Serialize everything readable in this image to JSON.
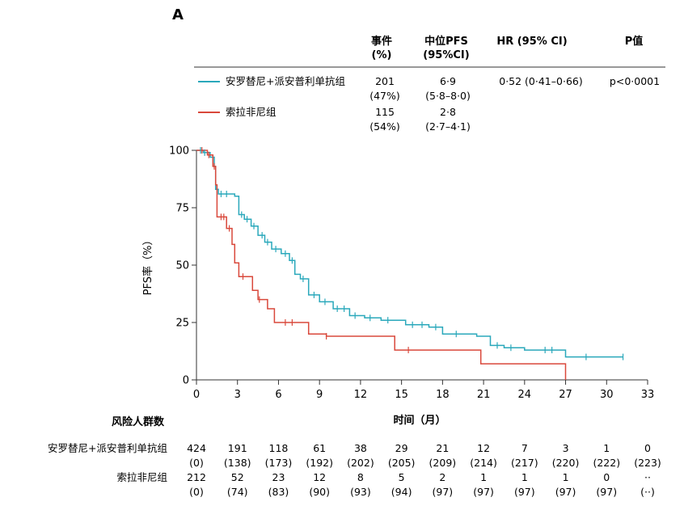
{
  "panel_label": "A",
  "table": {
    "headers": {
      "events": [
        "事件",
        "(%)"
      ],
      "median": [
        "中位PFS",
        "(95%CI)"
      ],
      "hr": "HR (95% CI)",
      "p": "P值"
    },
    "rows": [
      {
        "name": "安罗替尼+派安普利单抗组",
        "events": "201",
        "events_pct": "(47%)",
        "median": "6·9",
        "median_ci": "(5·8–8·0)",
        "hr": "0·52 (0·41–0·66)",
        "p": "p<0·0001",
        "color": "#2aa8bb"
      },
      {
        "name": "索拉非尼组",
        "events": "115",
        "events_pct": "(54%)",
        "median": "2·8",
        "median_ci": "(2·7–4·1)",
        "hr": "",
        "p": "",
        "color": "#d9483b"
      }
    ]
  },
  "chart_data": {
    "type": "line",
    "xlabel": "时间（月）",
    "ylabel": "PFS率（%）",
    "xlim": [
      0,
      33
    ],
    "ylim": [
      0,
      100
    ],
    "xticks": [
      "0",
      "3",
      "6",
      "9",
      "12",
      "15",
      "18",
      "21",
      "24",
      "27",
      "30",
      "33"
    ],
    "yticks": [
      "0",
      "25",
      "50",
      "75",
      "100"
    ],
    "grid": false,
    "series": [
      {
        "name": "安罗替尼+派安普利单抗组",
        "color": "#2aa8bb",
        "step": true,
        "x": [
          0,
          0.5,
          1.0,
          1.3,
          1.4,
          1.6,
          2.8,
          3.1,
          3.5,
          4.0,
          4.5,
          5.0,
          5.5,
          6.2,
          6.8,
          7.2,
          7.6,
          8.2,
          9.0,
          10.0,
          11.2,
          12.3,
          13.5,
          14.5,
          15.3,
          17.0,
          18.0,
          20.5,
          21.5,
          22.5,
          24.0,
          26.5,
          27.0,
          31.2
        ],
        "y": [
          100,
          99,
          97,
          93,
          83,
          81,
          80,
          72,
          70,
          67,
          63,
          60,
          57,
          55,
          52,
          46,
          44,
          37,
          34,
          31,
          28,
          27,
          26,
          26,
          24,
          23,
          20,
          19,
          15,
          14,
          13,
          13,
          10,
          10
        ]
      },
      {
        "name": "索拉非尼组",
        "color": "#d9483b",
        "step": true,
        "x": [
          0,
          0.8,
          1.2,
          1.4,
          1.5,
          2.2,
          2.6,
          2.8,
          3.1,
          4.1,
          4.5,
          5.2,
          5.7,
          8.2,
          9.5,
          14.5,
          20.8,
          27.0
        ],
        "y": [
          100,
          98,
          93,
          85,
          71,
          66,
          59,
          51,
          45,
          39,
          35,
          31,
          25,
          20,
          19,
          13,
          7,
          0
        ]
      }
    ],
    "censors": [
      {
        "series": 0,
        "x": [
          0.3,
          0.6,
          1.8,
          2.2,
          3.3,
          3.7,
          4.2,
          4.8,
          5.2,
          5.8,
          6.5,
          7.0,
          7.8,
          8.6,
          9.4,
          10.3,
          10.8,
          11.6,
          12.7,
          14.0,
          15.8,
          16.5,
          17.5,
          19.0,
          22.0,
          23.0,
          25.5,
          26.0,
          28.5,
          31.2
        ]
      },
      {
        "series": 1,
        "x": [
          0.4,
          0.9,
          1.3,
          1.8,
          2.0,
          2.4,
          3.4,
          4.6,
          6.5,
          7.0,
          9.5,
          15.5
        ]
      }
    ],
    "risk_table": {
      "title": "风险人群数",
      "rows": [
        {
          "name": "安罗替尼+派安普利单抗组",
          "at_risk": [
            "424",
            "191",
            "118",
            "61",
            "38",
            "29",
            "21",
            "12",
            "7",
            "3",
            "1",
            "0"
          ],
          "censored": [
            "(0)",
            "(138)",
            "(173)",
            "(192)",
            "(202)",
            "(205)",
            "(209)",
            "(214)",
            "(217)",
            "(220)",
            "(222)",
            "(223)"
          ]
        },
        {
          "name": "索拉非尼组",
          "at_risk": [
            "212",
            "52",
            "23",
            "12",
            "8",
            "5",
            "2",
            "1",
            "1",
            "1",
            "0",
            "··"
          ],
          "censored": [
            "(0)",
            "(74)",
            "(83)",
            "(90)",
            "(93)",
            "(94)",
            "(97)",
            "(97)",
            "(97)",
            "(97)",
            "(97)",
            "(··)"
          ]
        }
      ]
    }
  }
}
